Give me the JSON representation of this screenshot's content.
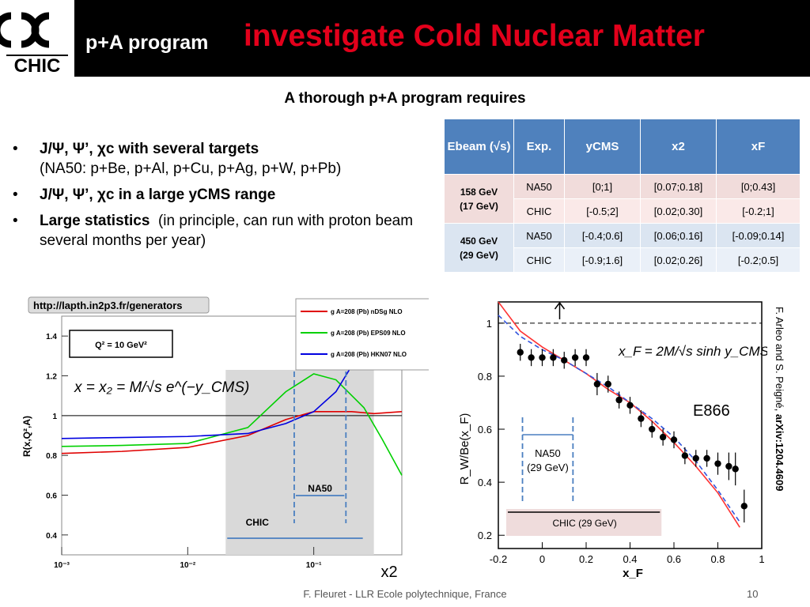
{
  "logo": {
    "text": "CHIC"
  },
  "header": {
    "subtitle": "p+A program",
    "title": "investigate Cold Nuclear Matter"
  },
  "section_title": "A thorough p+A program requires",
  "bullets": [
    {
      "bold": "J/Ψ, Ψ’, χc with several targets",
      "text": "(NA50: p+Be, p+Al, p+Cu, p+Ag, p+W, p+Pb)"
    },
    {
      "bold": "J/Ψ, Ψ’, χc in a large yCMS range",
      "text": ""
    },
    {
      "bold": "Large statistics",
      "text": "(in principle, can run with proton beam several months per year)"
    }
  ],
  "table": {
    "headers": [
      "Ebeam (√s)",
      "Exp.",
      "yCMS",
      "x2",
      "xF"
    ],
    "groups": [
      {
        "ebeam": "158 GeV",
        "sqrt_s": "(17 GeV)",
        "rows": [
          {
            "exp": "NA50",
            "ycms": "[0;1]",
            "x2": "[0.07;0.18]",
            "xf": "[0;0.43]"
          },
          {
            "exp": "CHIC",
            "ycms": "[-0.5;2]",
            "x2": "[0.02;0.30]",
            "xf": "[-0.2;1]"
          }
        ]
      },
      {
        "ebeam": "450 GeV",
        "sqrt_s": "(29 GeV)",
        "rows": [
          {
            "exp": "NA50",
            "ycms": "[-0.4;0.6]",
            "x2": "[0.06;0.16]",
            "xf": "[-0.09;0.14]"
          },
          {
            "exp": "CHIC",
            "ycms": "[-0.9;1.6]",
            "x2": "[0.02;0.26]",
            "xf": "[-0.2;0.5]"
          }
        ]
      }
    ]
  },
  "chart_data": [
    {
      "type": "line",
      "banner": "http://lapth.in2p3.fr/generators",
      "ylabel": "R(x,Q²,A)",
      "xlabel": "x2",
      "xscale": "log",
      "xlim": [
        0.001,
        0.5
      ],
      "ylim": [
        0.3,
        1.5
      ],
      "y_ticks": [
        "0.4",
        "0.6",
        "0.8",
        "1",
        "1.2",
        "1.4"
      ],
      "x_ticks": [
        "10⁻³",
        "10⁻²",
        "10⁻¹"
      ],
      "q2_label": "Q² = 10 GeV²",
      "formula": "x = x₂ = M/√s e^(−y_CMS)",
      "legend": [
        {
          "label": "g  A=208 (Pb) nDSg NLO",
          "color": "#e00000"
        },
        {
          "label": "g  A=208 (Pb) EPS09 NLO",
          "color": "#00d000"
        },
        {
          "label": "g  A=208 (Pb) HKN07 NLO",
          "color": "#0000e0"
        }
      ],
      "series": [
        {
          "name": "g  A=208 (Pb) nDSg NLO",
          "x": [
            0.001,
            0.003,
            0.01,
            0.03,
            0.06,
            0.1,
            0.2,
            0.3,
            0.5
          ],
          "y": [
            0.81,
            0.82,
            0.84,
            0.9,
            0.98,
            1.02,
            1.02,
            1.01,
            1.02
          ]
        },
        {
          "name": "g  A=208 (Pb) EPS09 NLO",
          "x": [
            0.001,
            0.003,
            0.01,
            0.03,
            0.06,
            0.1,
            0.15,
            0.25,
            0.35,
            0.5
          ],
          "y": [
            0.845,
            0.85,
            0.86,
            0.94,
            1.12,
            1.21,
            1.18,
            1.04,
            0.88,
            0.7
          ]
        },
        {
          "name": "g  A=208 (Pb) HKN07 NLO",
          "x": [
            0.001,
            0.003,
            0.01,
            0.03,
            0.06,
            0.1,
            0.15,
            0.2,
            0.3
          ],
          "y": [
            0.885,
            0.89,
            0.895,
            0.91,
            0.96,
            1.02,
            1.12,
            1.25,
            1.45
          ]
        }
      ],
      "hline": 1,
      "chic_band": {
        "label": "CHIC",
        "range": [
          0.02,
          0.3
        ]
      },
      "na50_band": {
        "label": "NA50",
        "range": [
          0.07,
          0.18
        ]
      }
    },
    {
      "type": "scatter",
      "ylabel": "R_W/Be(x_F)",
      "xlabel": "x_F",
      "xlim": [
        -0.2,
        1.0
      ],
      "ylim": [
        0.15,
        1.08
      ],
      "x_ticks": [
        "-0.2",
        "0",
        "0.2",
        "0.4",
        "0.6",
        "0.8",
        "1"
      ],
      "y_ticks": [
        "0.2",
        "0.4",
        "0.6",
        "0.8",
        "1"
      ],
      "formula": "x_F = 2M/√s sinh y_CMS",
      "experiment_label": "E866",
      "points": {
        "x": [
          -0.1,
          -0.05,
          0.0,
          0.05,
          0.1,
          0.15,
          0.2,
          0.25,
          0.3,
          0.35,
          0.4,
          0.45,
          0.5,
          0.55,
          0.6,
          0.65,
          0.7,
          0.75,
          0.8,
          0.85,
          0.88,
          0.92
        ],
        "y": [
          0.89,
          0.87,
          0.87,
          0.87,
          0.86,
          0.87,
          0.87,
          0.77,
          0.77,
          0.71,
          0.69,
          0.64,
          0.6,
          0.57,
          0.56,
          0.5,
          0.49,
          0.49,
          0.47,
          0.46,
          0.45,
          0.31
        ],
        "err": [
          0.02,
          0.02,
          0.02,
          0.02,
          0.02,
          0.02,
          0.02,
          0.03,
          0.02,
          0.02,
          0.02,
          0.02,
          0.02,
          0.02,
          0.02,
          0.02,
          0.02,
          0.02,
          0.03,
          0.04,
          0.05,
          0.05
        ]
      },
      "curves": [
        {
          "color": "#ff3333",
          "style": "solid",
          "x": [
            -0.2,
            -0.1,
            0.0,
            0.1,
            0.2,
            0.3,
            0.4,
            0.5,
            0.6,
            0.7,
            0.8,
            0.9
          ],
          "y": [
            1.08,
            0.97,
            0.91,
            0.86,
            0.81,
            0.75,
            0.7,
            0.63,
            0.55,
            0.46,
            0.36,
            0.23
          ]
        },
        {
          "color": "#3355dd",
          "style": "dashed",
          "x": [
            -0.2,
            -0.1,
            0.0,
            0.1,
            0.2,
            0.3,
            0.4,
            0.5,
            0.6,
            0.7,
            0.8,
            0.9
          ],
          "y": [
            1.03,
            0.95,
            0.9,
            0.86,
            0.81,
            0.76,
            0.7,
            0.64,
            0.57,
            0.48,
            0.37,
            0.25
          ]
        }
      ],
      "hline": 1,
      "na50_band": {
        "label": "NA50",
        "sublabel": "(29 GeV)",
        "range": [
          -0.09,
          0.14
        ]
      },
      "chic_band": {
        "label": "CHIC (29 GeV)",
        "range": [
          -0.2,
          0.5
        ]
      }
    }
  ],
  "side_citation": {
    "text": "F. Arleo and S. Peigné, ",
    "bold": "arXiv:1204.4609"
  },
  "footer": "F. Fleuret - LLR Ecole polytechnique, France",
  "page_number": "10",
  "colors": {
    "header_bg": "#000000",
    "title_red": "#e3001b",
    "table_header": "#4f81bd"
  }
}
